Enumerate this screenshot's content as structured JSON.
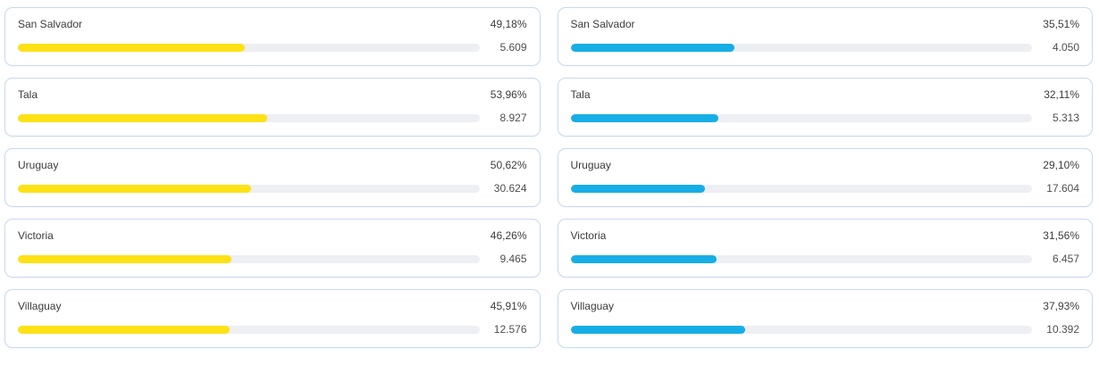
{
  "colors": {
    "background": "#ffffff",
    "card_border": "#c7d9f1",
    "track": "#edeff3",
    "left_bar": "#ffe115",
    "right_bar": "#17aee6",
    "label_text": "#3c3c3c",
    "value_text": "#4e4e4e"
  },
  "cards": {
    "left": [
      {
        "label": "San Salvador",
        "percent": "49,18%",
        "percent_value": 49.18,
        "value": "5.609"
      },
      {
        "label": "Tala",
        "percent": "53,96%",
        "percent_value": 53.96,
        "value": "8.927"
      },
      {
        "label": "Uruguay",
        "percent": "50,62%",
        "percent_value": 50.62,
        "value": "30.624"
      },
      {
        "label": "Victoria",
        "percent": "46,26%",
        "percent_value": 46.26,
        "value": "9.465"
      },
      {
        "label": "Villaguay",
        "percent": "45,91%",
        "percent_value": 45.91,
        "value": "12.576"
      }
    ],
    "right": [
      {
        "label": "San Salvador",
        "percent": "35,51%",
        "percent_value": 35.51,
        "value": "4.050"
      },
      {
        "label": "Tala",
        "percent": "32,11%",
        "percent_value": 32.11,
        "value": "5.313"
      },
      {
        "label": "Uruguay",
        "percent": "29,10%",
        "percent_value": 29.1,
        "value": "17.604"
      },
      {
        "label": "Victoria",
        "percent": "31,56%",
        "percent_value": 31.56,
        "value": "6.457"
      },
      {
        "label": "Villaguay",
        "percent": "37,93%",
        "percent_value": 37.93,
        "value": "10.392"
      }
    ]
  },
  "chart_data": [
    {
      "type": "bar",
      "orientation": "horizontal",
      "title": "",
      "categories": [
        "San Salvador",
        "Tala",
        "Uruguay",
        "Victoria",
        "Villaguay"
      ],
      "series": [
        {
          "name": "percent",
          "unit": "%",
          "values": [
            49.18,
            53.96,
            50.62,
            46.26,
            45.91
          ]
        },
        {
          "name": "count",
          "values": [
            5609,
            8927,
            30624,
            9465,
            12576
          ]
        }
      ],
      "percent_labels": [
        "49,18%",
        "53,96%",
        "50,62%",
        "46,26%",
        "45,91%"
      ],
      "count_labels": [
        "5.609",
        "8.927",
        "30.624",
        "9.465",
        "12.576"
      ],
      "bar_color": "#ffe115",
      "xlim": [
        0,
        100
      ],
      "grid": false,
      "legend": false
    },
    {
      "type": "bar",
      "orientation": "horizontal",
      "title": "",
      "categories": [
        "San Salvador",
        "Tala",
        "Uruguay",
        "Victoria",
        "Villaguay"
      ],
      "series": [
        {
          "name": "percent",
          "unit": "%",
          "values": [
            35.51,
            32.11,
            29.1,
            31.56,
            37.93
          ]
        },
        {
          "name": "count",
          "values": [
            4050,
            5313,
            17604,
            6457,
            10392
          ]
        }
      ],
      "percent_labels": [
        "35,51%",
        "32,11%",
        "29,10%",
        "31,56%",
        "37,93%"
      ],
      "count_labels": [
        "4.050",
        "5.313",
        "17.604",
        "6.457",
        "10.392"
      ],
      "bar_color": "#17aee6",
      "xlim": [
        0,
        100
      ],
      "grid": false,
      "legend": false
    }
  ]
}
